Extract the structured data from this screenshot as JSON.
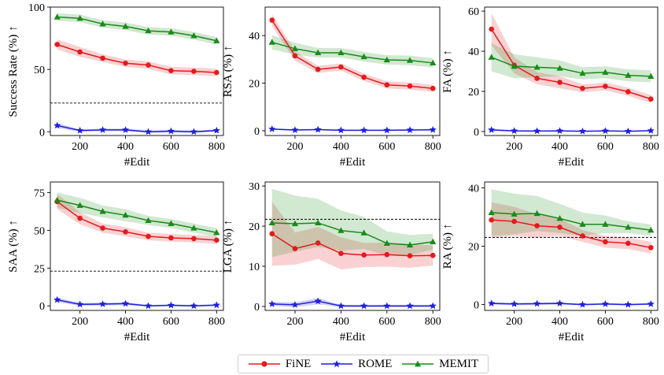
{
  "colors": {
    "FiNE": "#e41a1c",
    "ROME": "#1f1fe0",
    "MEMIT": "#1a8a1a"
  },
  "legend": {
    "items": [
      "FiNE",
      "ROME",
      "MEMIT"
    ]
  },
  "chart_data": [
    {
      "type": "line",
      "xlabel": "#Edit",
      "ylabel": "Success Rate (%) ↑",
      "x": [
        100,
        200,
        300,
        400,
        500,
        600,
        700,
        800
      ],
      "xticks": [
        200,
        400,
        600,
        800
      ],
      "ylim": [
        -3,
        100
      ],
      "yticks": [
        0,
        50,
        100
      ],
      "baseline": 23,
      "series": [
        {
          "name": "FiNE",
          "values": [
            70,
            64,
            59,
            55,
            53.5,
            49,
            48.5,
            47.5
          ],
          "band": [
            4,
            4,
            3,
            3,
            3,
            3,
            3,
            3
          ]
        },
        {
          "name": "ROME",
          "values": [
            5,
            1,
            1.5,
            1.5,
            0,
            0.5,
            0,
            1
          ],
          "band": [
            2,
            1,
            1,
            1,
            1,
            1,
            1,
            1
          ]
        },
        {
          "name": "MEMIT",
          "values": [
            92,
            91,
            86.5,
            84.5,
            81,
            80,
            77,
            73
          ],
          "band": [
            3,
            3,
            3,
            3,
            3,
            3,
            3,
            3
          ]
        }
      ]
    },
    {
      "type": "line",
      "xlabel": "#Edit",
      "ylabel": "RSA (%) ↑",
      "x": [
        100,
        200,
        300,
        400,
        500,
        600,
        700,
        800
      ],
      "xticks": [
        200,
        400,
        600,
        800
      ],
      "ylim": [
        -2,
        52
      ],
      "yticks": [
        0,
        20,
        40
      ],
      "series": [
        {
          "name": "FiNE",
          "values": [
            46.5,
            31.5,
            25.8,
            26.8,
            22.5,
            19.3,
            18.8,
            17.8
          ],
          "band": [
            2.5,
            2,
            1.5,
            1.5,
            1.5,
            1.5,
            1.5,
            1.5
          ]
        },
        {
          "name": "ROME",
          "values": [
            0.7,
            0.3,
            0.5,
            0.2,
            0.2,
            0.2,
            0.3,
            0.4
          ],
          "band": [
            0.3,
            0.3,
            0.3,
            0.3,
            0.3,
            0.3,
            0.3,
            0.3
          ]
        },
        {
          "name": "MEMIT",
          "values": [
            37.2,
            34.5,
            32.8,
            32.8,
            31.1,
            29.8,
            29.6,
            28.5
          ],
          "band": [
            3,
            2.5,
            2,
            2,
            2,
            2,
            2,
            2
          ]
        }
      ]
    },
    {
      "type": "line",
      "xlabel": "#Edit",
      "ylabel": "FA (%) ↑",
      "x": [
        100,
        200,
        300,
        400,
        500,
        600,
        700,
        800
      ],
      "xticks": [
        200,
        400,
        600,
        800
      ],
      "ylim": [
        -2,
        62
      ],
      "yticks": [
        0,
        20,
        40,
        60
      ],
      "series": [
        {
          "name": "FiNE",
          "values": [
            51,
            33,
            26.5,
            24.5,
            21.5,
            22.5,
            19.8,
            16.2
          ],
          "band": [
            8,
            4,
            3,
            3,
            2,
            2,
            2,
            2
          ]
        },
        {
          "name": "ROME",
          "values": [
            0.8,
            0.3,
            0.2,
            0.3,
            0.1,
            0.3,
            0.1,
            0.4
          ],
          "band": [
            0.5,
            0.4,
            0.3,
            0.3,
            0.3,
            0.3,
            0.3,
            0.3
          ]
        },
        {
          "name": "MEMIT",
          "values": [
            37,
            32.5,
            32,
            31.5,
            29,
            29.5,
            28,
            27.5
          ],
          "band": [
            7,
            6,
            5,
            4,
            3,
            3,
            3,
            3
          ]
        }
      ]
    },
    {
      "type": "line",
      "xlabel": "#Edit",
      "ylabel": "SAA (%) ↑",
      "x": [
        100,
        200,
        300,
        400,
        500,
        600,
        700,
        800
      ],
      "xticks": [
        200,
        400,
        600,
        800
      ],
      "ylim": [
        -3,
        82
      ],
      "yticks": [
        0,
        25,
        50,
        75
      ],
      "baseline": 23,
      "series": [
        {
          "name": "FiNE",
          "values": [
            69,
            58,
            51.5,
            49,
            46,
            45,
            44.5,
            43.5
          ],
          "band": [
            5,
            4,
            3,
            3,
            2.5,
            2.5,
            2.5,
            2.5
          ]
        },
        {
          "name": "ROME",
          "values": [
            4,
            1,
            1.2,
            1.5,
            0,
            0.4,
            0,
            0.5
          ],
          "band": [
            1.5,
            1,
            1,
            1,
            0.6,
            0.6,
            0.6,
            0.6
          ]
        },
        {
          "name": "MEMIT",
          "values": [
            70,
            66.5,
            62.5,
            60,
            56.5,
            54.5,
            51.5,
            48.5
          ],
          "band": [
            5,
            5,
            4,
            4,
            3,
            3,
            3,
            3
          ]
        }
      ]
    },
    {
      "type": "line",
      "xlabel": "#Edit",
      "ylabel": "LGA (%) ↑",
      "x": [
        100,
        200,
        300,
        400,
        500,
        600,
        700,
        800
      ],
      "xticks": [
        200,
        400,
        600,
        800
      ],
      "ylim": [
        -1,
        31
      ],
      "yticks": [
        0,
        10,
        20,
        30
      ],
      "baseline": 21.7,
      "series": [
        {
          "name": "FiNE",
          "values": [
            18.1,
            14.4,
            15.8,
            13.2,
            12.8,
            12.9,
            12.6,
            12.7
          ],
          "band": [
            8,
            4,
            4,
            4,
            3,
            3,
            3,
            2.5
          ]
        },
        {
          "name": "ROME",
          "values": [
            0.6,
            0.4,
            1.3,
            0.1,
            0.1,
            0.1,
            0.1,
            0.1
          ],
          "band": [
            0.5,
            0.6,
            0.8,
            0.3,
            0.3,
            0.3,
            0.3,
            0.3
          ]
        },
        {
          "name": "MEMIT",
          "values": [
            20.8,
            20.6,
            20.8,
            18.9,
            18.3,
            15.7,
            15.3,
            16.1
          ],
          "band": [
            8.5,
            7,
            6,
            5,
            4,
            3,
            2.5,
            2
          ]
        }
      ]
    },
    {
      "type": "line",
      "xlabel": "#Edit",
      "ylabel": "RA (%) ↑",
      "x": [
        100,
        200,
        300,
        400,
        500,
        600,
        700,
        800
      ],
      "xticks": [
        200,
        400,
        600,
        800
      ],
      "ylim": [
        -2,
        42
      ],
      "yticks": [
        0,
        20,
        40
      ],
      "baseline": 23,
      "series": [
        {
          "name": "FiNE",
          "values": [
            29,
            28.5,
            27,
            26.5,
            23.5,
            21.5,
            21,
            19.5
          ],
          "band": [
            6,
            5,
            4,
            3,
            2,
            2,
            2,
            2
          ]
        },
        {
          "name": "ROME",
          "values": [
            0.4,
            0.2,
            0.3,
            0.4,
            0,
            0.2,
            0,
            0.2
          ],
          "band": [
            0.4,
            0.4,
            0.4,
            0.4,
            0.3,
            0.3,
            0.3,
            0.3
          ]
        },
        {
          "name": "MEMIT",
          "values": [
            31.5,
            31,
            31.2,
            29.5,
            27.5,
            27.5,
            26.5,
            25.5
          ],
          "band": [
            8,
            7,
            6,
            5,
            4,
            3,
            2,
            2
          ]
        }
      ]
    }
  ]
}
